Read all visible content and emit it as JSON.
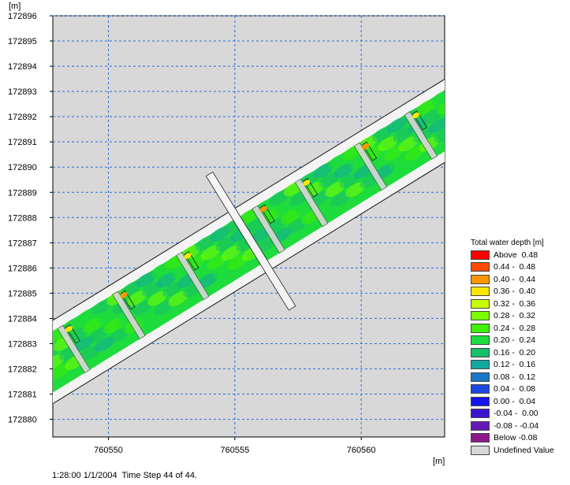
{
  "plot": {
    "y_unit": "[m]",
    "x_unit": "[m]",
    "x_ticks": [
      "760550",
      "760555",
      "760560"
    ],
    "y_ticks": [
      "172896",
      "172895",
      "172894",
      "172893",
      "172892",
      "172891",
      "172890",
      "172889",
      "172888",
      "172887",
      "172886",
      "172885",
      "172884",
      "172883",
      "172882",
      "172881",
      "172880"
    ],
    "x_range": [
      760547.8,
      760563.3
    ],
    "y_range": [
      172879.3,
      172896.0
    ],
    "grid": true,
    "background_color": "#d8d8d8",
    "grid_color": "#2a6fd6"
  },
  "legend": {
    "title": "Total water depth [m]",
    "items": [
      {
        "label": "Above  0.48",
        "color": "#ff0000"
      },
      {
        "label": "0.44 -  0.48",
        "color": "#ff4a00"
      },
      {
        "label": "0.40 -  0.44",
        "color": "#ff9600"
      },
      {
        "label": "0.36 -  0.40",
        "color": "#ffe600"
      },
      {
        "label": "0.32 -  0.36",
        "color": "#c8ff00"
      },
      {
        "label": "0.28 -  0.32",
        "color": "#7aff00"
      },
      {
        "label": "0.24 -  0.28",
        "color": "#3ef000"
      },
      {
        "label": "0.20 -  0.24",
        "color": "#1edc3c"
      },
      {
        "label": "0.16 -  0.20",
        "color": "#17c06a"
      },
      {
        "label": "0.12 -  0.16",
        "color": "#13a8a0"
      },
      {
        "label": "0.08 -  0.12",
        "color": "#1a78c8"
      },
      {
        "label": "0.04 -  0.08",
        "color": "#1c48e0"
      },
      {
        "label": "0.00 -  0.04",
        "color": "#1414f0"
      },
      {
        "label": "-0.04 -  0.00",
        "color": "#3c14d0"
      },
      {
        "label": "-0.08 - -0.04",
        "color": "#6418b4"
      },
      {
        "label": "Below -0.08",
        "color": "#8c1a8c"
      },
      {
        "label": "Undefined Value",
        "color": "#d8d8d8"
      }
    ]
  },
  "status": {
    "time": "1:28:00 1/1/2004",
    "step": "Time Step 44 of 44."
  }
}
